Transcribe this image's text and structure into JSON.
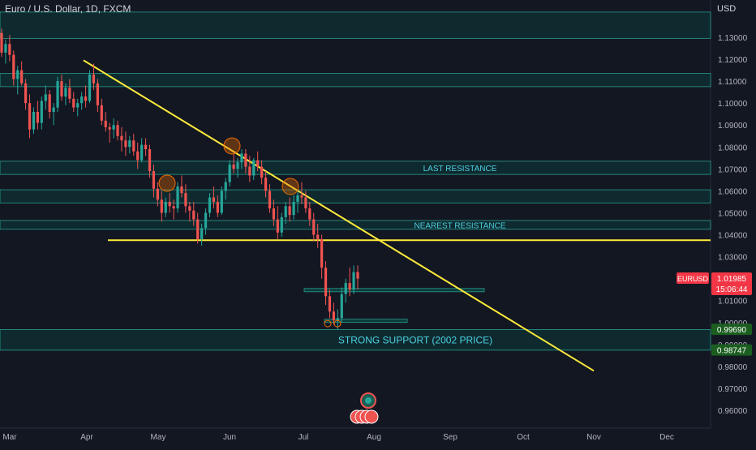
{
  "legend": {
    "title": "Euro / U.S. Dollar, 1D, FXCM"
  },
  "currency_label": "USD",
  "colors": {
    "background": "#131722",
    "up": "#26a69a",
    "down": "#ef5350",
    "trendline": "#ffeb3b",
    "zone_fill": "#0b3b3a",
    "zone_border": "#2a9d8f",
    "zone_label": "#4dd0e1",
    "axis_text": "#b2b5be",
    "green_tag": "#1b5e20",
    "red_tag": "#f23645"
  },
  "chart_data": {
    "type": "candlestick",
    "title": "Euro / U.S. Dollar, 1D, FXCM",
    "ylabel": "USD",
    "ylim": [
      0.955,
      1.1415
    ],
    "y_ticks": [
      "1.13000",
      "1.12000",
      "1.11000",
      "1.10000",
      "1.09000",
      "1.08000",
      "1.07000",
      "1.06000",
      "1.05000",
      "1.04000",
      "1.03000",
      "1.01000",
      "1.00000",
      "0.99000",
      "0.98000",
      "0.97000",
      "0.96000"
    ],
    "x_ticks": [
      "Mar",
      "Apr",
      "May",
      "Jun",
      "Jul",
      "Aug",
      "Sep",
      "Oct",
      "Nov",
      "Dec"
    ],
    "series": [
      {
        "type": "candles",
        "ohlc": [
          [
            1.132,
            1.134,
            1.121,
            1.123
          ],
          [
            1.123,
            1.129,
            1.118,
            1.127
          ],
          [
            1.127,
            1.131,
            1.119,
            1.122
          ],
          [
            1.122,
            1.124,
            1.108,
            1.111
          ],
          [
            1.111,
            1.117,
            1.104,
            1.115
          ],
          [
            1.115,
            1.119,
            1.108,
            1.109
          ],
          [
            1.109,
            1.111,
            1.097,
            1.1
          ],
          [
            1.1,
            1.104,
            1.084,
            1.088
          ],
          [
            1.088,
            1.098,
            1.086,
            1.096
          ],
          [
            1.096,
            1.101,
            1.088,
            1.091
          ],
          [
            1.091,
            1.103,
            1.088,
            1.101
          ],
          [
            1.101,
            1.108,
            1.097,
            1.104
          ],
          [
            1.104,
            1.106,
            1.093,
            1.096
          ],
          [
            1.096,
            1.1,
            1.09,
            1.098
          ],
          [
            1.098,
            1.112,
            1.096,
            1.11
          ],
          [
            1.11,
            1.113,
            1.101,
            1.103
          ],
          [
            1.103,
            1.109,
            1.099,
            1.107
          ],
          [
            1.107,
            1.111,
            1.1,
            1.102
          ],
          [
            1.102,
            1.105,
            1.096,
            1.098
          ],
          [
            1.098,
            1.102,
            1.094,
            1.1
          ],
          [
            1.1,
            1.105,
            1.097,
            1.103
          ],
          [
            1.103,
            1.108,
            1.098,
            1.101
          ],
          [
            1.101,
            1.115,
            1.1,
            1.113
          ],
          [
            1.113,
            1.118,
            1.106,
            1.109
          ],
          [
            1.109,
            1.111,
            1.096,
            1.099
          ],
          [
            1.099,
            1.102,
            1.09,
            1.092
          ],
          [
            1.092,
            1.096,
            1.087,
            1.089
          ],
          [
            1.089,
            1.091,
            1.082,
            1.088
          ],
          [
            1.088,
            1.093,
            1.084,
            1.09
          ],
          [
            1.09,
            1.092,
            1.083,
            1.085
          ],
          [
            1.085,
            1.089,
            1.078,
            1.083
          ],
          [
            1.083,
            1.087,
            1.076,
            1.08
          ],
          [
            1.08,
            1.085,
            1.077,
            1.083
          ],
          [
            1.083,
            1.086,
            1.076,
            1.078
          ],
          [
            1.078,
            1.082,
            1.07,
            1.074
          ],
          [
            1.074,
            1.084,
            1.073,
            1.081
          ],
          [
            1.081,
            1.084,
            1.076,
            1.079
          ],
          [
            1.079,
            1.081,
            1.066,
            1.069
          ],
          [
            1.069,
            1.072,
            1.057,
            1.061
          ],
          [
            1.061,
            1.064,
            1.053,
            1.056
          ],
          [
            1.056,
            1.06,
            1.046,
            1.05
          ],
          [
            1.05,
            1.057,
            1.048,
            1.055
          ],
          [
            1.055,
            1.059,
            1.05,
            1.053
          ],
          [
            1.053,
            1.056,
            1.047,
            1.052
          ],
          [
            1.052,
            1.064,
            1.05,
            1.062
          ],
          [
            1.062,
            1.067,
            1.057,
            1.059
          ],
          [
            1.059,
            1.063,
            1.05,
            1.053
          ],
          [
            1.053,
            1.055,
            1.046,
            1.051
          ],
          [
            1.051,
            1.055,
            1.044,
            1.047
          ],
          [
            1.047,
            1.05,
            1.036,
            1.038
          ],
          [
            1.038,
            1.045,
            1.035,
            1.043
          ],
          [
            1.043,
            1.052,
            1.04,
            1.05
          ],
          [
            1.05,
            1.059,
            1.048,
            1.057
          ],
          [
            1.057,
            1.062,
            1.052,
            1.055
          ],
          [
            1.055,
            1.058,
            1.048,
            1.05
          ],
          [
            1.05,
            1.062,
            1.049,
            1.06
          ],
          [
            1.06,
            1.066,
            1.056,
            1.064
          ],
          [
            1.064,
            1.074,
            1.062,
            1.072
          ],
          [
            1.072,
            1.077,
            1.068,
            1.07
          ],
          [
            1.07,
            1.075,
            1.066,
            1.073
          ],
          [
            1.073,
            1.079,
            1.07,
            1.077
          ],
          [
            1.077,
            1.079,
            1.068,
            1.071
          ],
          [
            1.071,
            1.076,
            1.064,
            1.067
          ],
          [
            1.067,
            1.075,
            1.065,
            1.074
          ],
          [
            1.074,
            1.078,
            1.069,
            1.071
          ],
          [
            1.071,
            1.074,
            1.063,
            1.066
          ],
          [
            1.066,
            1.069,
            1.057,
            1.06
          ],
          [
            1.06,
            1.063,
            1.05,
            1.052
          ],
          [
            1.052,
            1.056,
            1.044,
            1.047
          ],
          [
            1.047,
            1.053,
            1.038,
            1.041
          ],
          [
            1.041,
            1.05,
            1.039,
            1.048
          ],
          [
            1.048,
            1.055,
            1.045,
            1.053
          ],
          [
            1.053,
            1.057,
            1.046,
            1.049
          ],
          [
            1.049,
            1.058,
            1.047,
            1.055
          ],
          [
            1.055,
            1.06,
            1.05,
            1.058
          ],
          [
            1.058,
            1.064,
            1.054,
            1.057
          ],
          [
            1.057,
            1.06,
            1.05,
            1.052
          ],
          [
            1.052,
            1.055,
            1.044,
            1.047
          ],
          [
            1.047,
            1.05,
            1.037,
            1.04
          ],
          [
            1.04,
            1.045,
            1.034,
            1.038
          ],
          [
            1.038,
            1.04,
            1.02,
            1.025
          ],
          [
            1.025,
            1.028,
            1.008,
            1.012
          ],
          [
            1.012,
            1.015,
            1.002,
            1.005
          ],
          [
            1.005,
            1.009,
            0.999,
            1.001
          ],
          [
            1.001,
            1.006,
            0.997,
            1.002
          ],
          [
            1.002,
            1.016,
            1.0,
            1.013
          ],
          [
            1.013,
            1.02,
            1.009,
            1.018
          ],
          [
            1.018,
            1.025,
            1.012,
            1.015
          ],
          [
            1.015,
            1.026,
            1.013,
            1.023
          ],
          [
            1.023,
            1.026,
            1.015,
            1.02
          ]
        ]
      },
      {
        "type": "horizontal_zone",
        "label": "",
        "y": [
          1.1295,
          1.1415
        ]
      },
      {
        "type": "horizontal_zone",
        "label": "",
        "y": [
          1.1075,
          1.1135
        ]
      },
      {
        "type": "horizontal_zone",
        "label": "LAST RESISTANCE",
        "y": [
          1.0675,
          1.0735
        ]
      },
      {
        "type": "horizontal_zone",
        "label": "",
        "y": [
          1.0545,
          1.0605
        ]
      },
      {
        "type": "horizontal_zone",
        "label": "NEAREST RESISTANCE",
        "y": [
          1.0425,
          1.0465
        ]
      },
      {
        "type": "horizontal_zone",
        "label": "STRONG SUPPORT (2002 PRICE)",
        "y": [
          0.9874,
          0.9968
        ]
      },
      {
        "type": "horizontal_line",
        "label": "",
        "y": 1.0375
      },
      {
        "type": "trendline",
        "label": "",
        "points": [
          [
            "Apr",
            1.1195
          ],
          [
            "Nov",
            0.978
          ]
        ]
      }
    ],
    "price_tags": [
      {
        "symbol": "EURUSD",
        "price": "1.01985",
        "countdown": "15:06:44"
      },
      {
        "price": "0.99690"
      },
      {
        "price": "0.98747"
      }
    ]
  }
}
